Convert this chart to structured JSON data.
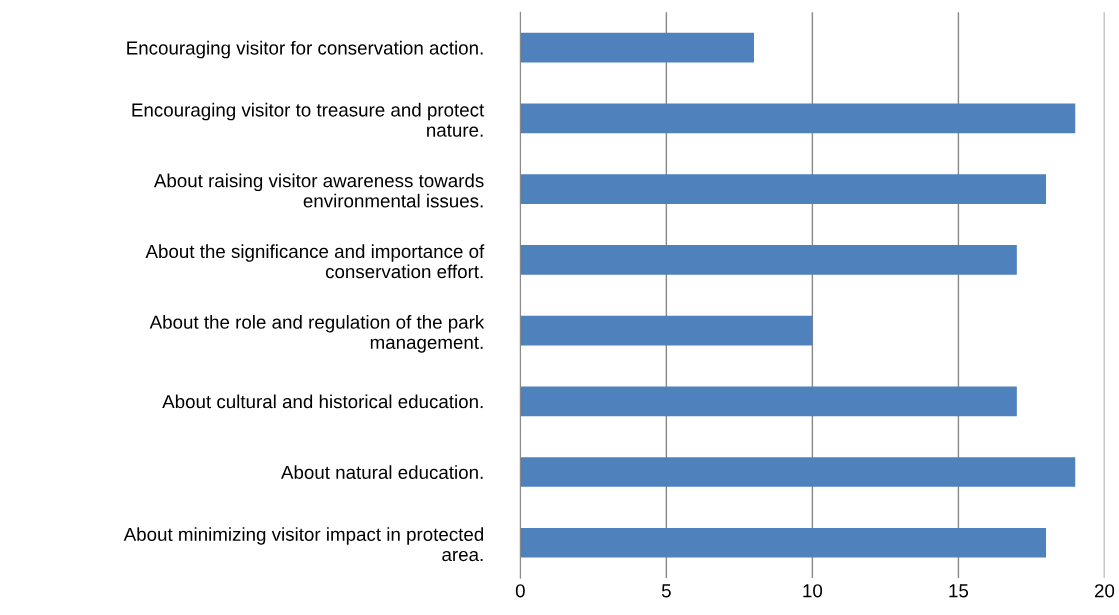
{
  "chart_data": {
    "type": "bar",
    "orientation": "horizontal",
    "categories": [
      "Encouraging visitor for conservation action.",
      "Encouraging visitor to treasure and protect\nnature.",
      "About raising visitor awareness towards\nenvironmental issues.",
      "About the significance and importance of\nconservation effort.",
      "About the role and regulation of the park\nmanagement.",
      "About cultural and historical education.",
      "About natural education.",
      "About minimizing visitor impact in protected\narea."
    ],
    "values": [
      8,
      19,
      18,
      17,
      10,
      17,
      19,
      18
    ],
    "color": "#4f81bd",
    "xlim": [
      0,
      20
    ],
    "xticks": [
      0,
      5,
      10,
      15,
      20
    ],
    "grid": "x",
    "legend": false
  }
}
